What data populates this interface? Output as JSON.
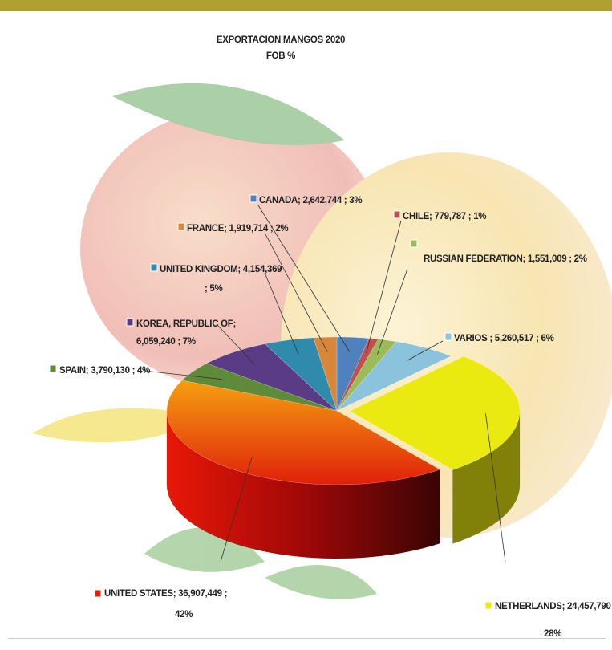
{
  "chart_data": {
    "type": "pie3d",
    "title": "EXPORTACION  MANGOS 2020",
    "subtitle": "FOB %",
    "categories": [
      "CANADA",
      "CHILE",
      "RUSSIAN FEDERATION",
      "VARIOS",
      "NETHERLANDS",
      "UNITED STATES",
      "SPAIN",
      "KOREA, REPUBLIC OF",
      "UNITED KINGDOM",
      "FRANCE"
    ],
    "values": [
      2642744,
      779787,
      1551009,
      5260517,
      24457790,
      36907449,
      3790130,
      6059240,
      4154369,
      1919714
    ],
    "percents": [
      3,
      1,
      2,
      6,
      28,
      42,
      4,
      7,
      5,
      2
    ],
    "data_labels": [
      [
        "CANADA;  2,642,744 ; 3%"
      ],
      [
        "CHILE;  779,787 ; 1%"
      ],
      [
        "RUSSIAN FEDERATION;  1,551,009 ; 2%"
      ],
      [
        "VARIOS ;  5,260,517 ; 6%"
      ],
      [
        "NETHERLANDS;  24,457,790 ;",
        "28%"
      ],
      [
        "UNITED STATES;  36,907,449 ;",
        "42%"
      ],
      [
        "SPAIN;  3,790,130 ; 4%"
      ],
      [
        "KOREA, REPUBLIC OF;",
        "6,059,240 ; 7%"
      ],
      [
        "UNITED KINGDOM;  4,154,369",
        "; 5%"
      ],
      [
        "FRANCE;  1,919,714 ; 2%"
      ]
    ],
    "colors": [
      "#4f81bd",
      "#c0504d",
      "#9bbb59",
      "#8cc3dc",
      "#eaea10",
      "#e0200a",
      "#5f8a3a",
      "#5a3c86",
      "#2f8aab",
      "#d8873a"
    ]
  }
}
